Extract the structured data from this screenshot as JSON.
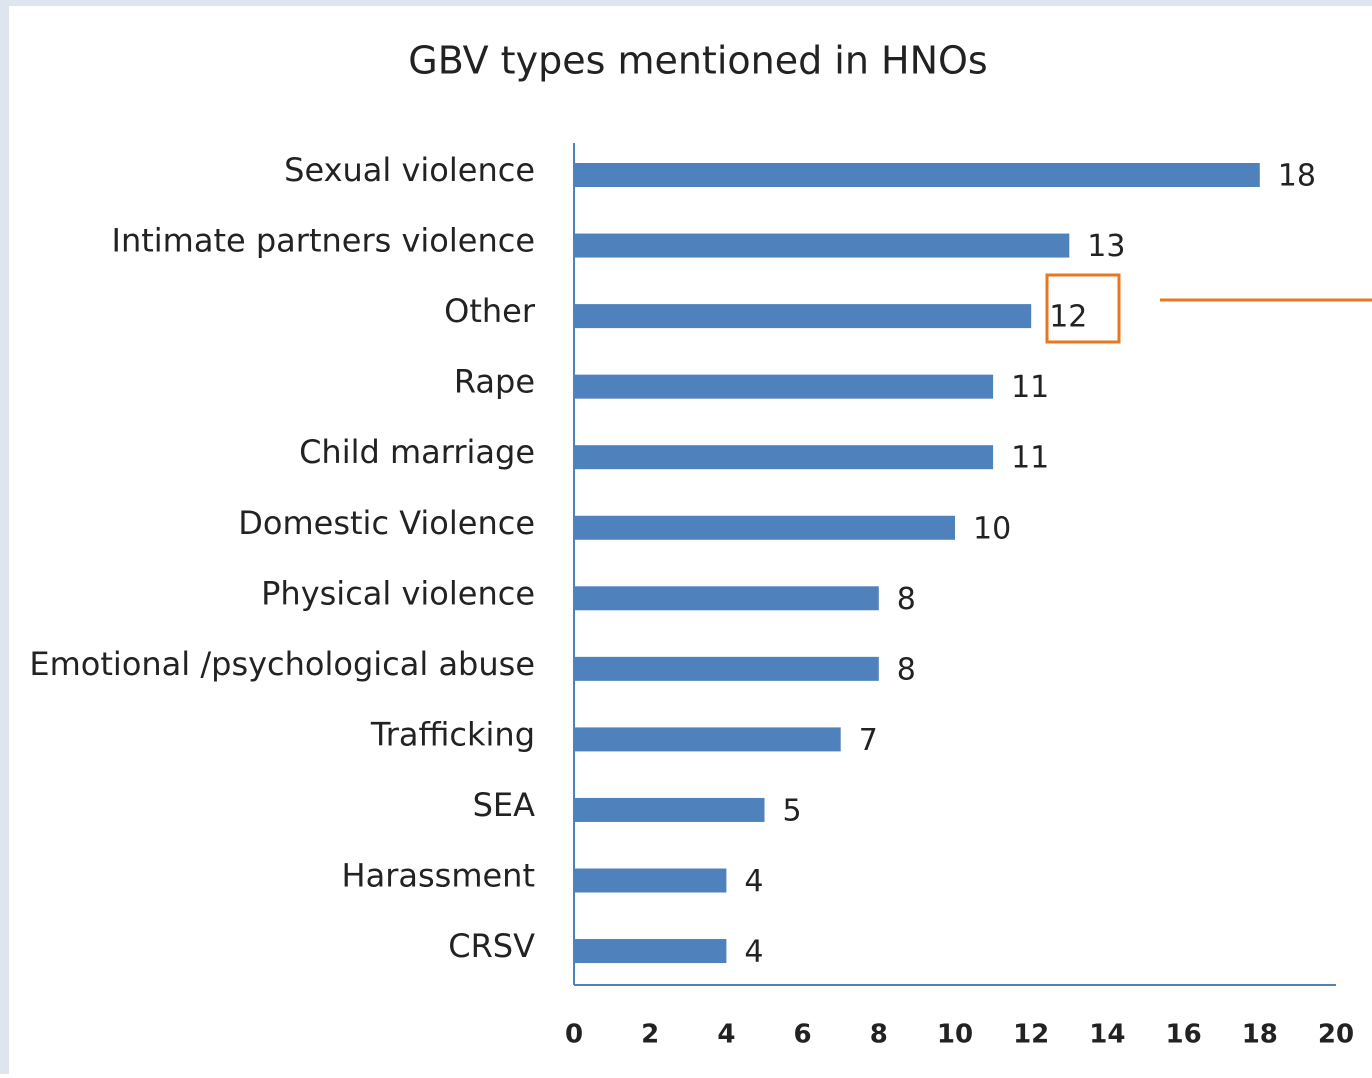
{
  "chart_data": {
    "type": "bar",
    "orientation": "horizontal",
    "title": "GBV types mentioned in HNOs",
    "categories": [
      "Sexual violence",
      "Intimate partners violence",
      "Other",
      "Rape",
      "Child marriage",
      "Domestic Violence",
      "Physical violence",
      "Emotional /psychological abuse",
      "Trafficking",
      "SEA",
      "Harassment",
      "CRSV"
    ],
    "values": [
      18,
      13,
      12,
      11,
      11,
      10,
      8,
      8,
      7,
      5,
      4,
      4
    ],
    "color": "#4f81bd",
    "xlim": [
      0,
      20
    ],
    "xticks": [
      0,
      2,
      4,
      6,
      8,
      10,
      12,
      14,
      16,
      18,
      20
    ],
    "grid": false
  }
}
